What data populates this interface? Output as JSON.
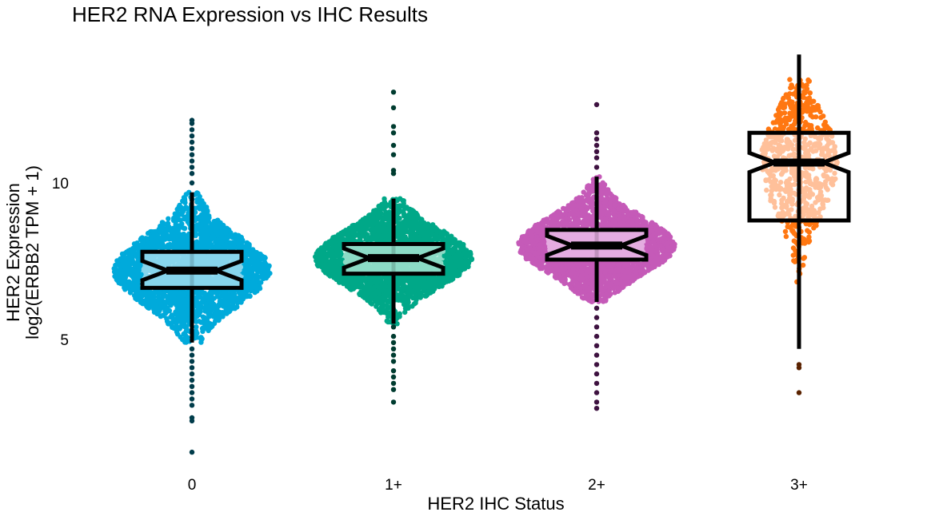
{
  "chart_data": {
    "type": "box",
    "title": "HER2 RNA Expression vs IHC Results",
    "xlabel": "HER2 IHC Status",
    "ylabel_line1": "HER2 Expression",
    "ylabel_line2": "log2(ERBB2 TPM + 1)",
    "ylim": [
      1,
      14
    ],
    "yticks": [
      5,
      10
    ],
    "ytick_labels": [
      "5",
      "10"
    ],
    "categories": [
      "0",
      "1+",
      "2+",
      "3+"
    ],
    "grid": false,
    "notched": true,
    "colors": {
      "points": [
        "#00aadb",
        "#00a888",
        "#c55ab8",
        "#ff7711"
      ],
      "box_fill": [
        "#87d5ec",
        "#8cdbc6",
        "#e4ace0",
        "#ffc09a"
      ],
      "outliers": [
        "#003c4a",
        "#003c30",
        "#3e1240",
        "#5a2200"
      ]
    },
    "series": [
      {
        "category": "0",
        "median": 7.2,
        "q1": 6.65,
        "q3": 7.8,
        "whisker_low": 4.9,
        "whisker_high": 9.7,
        "density_spread": 0.85,
        "outliers": [
          10.0,
          10.3,
          10.5,
          10.7,
          10.9,
          11.1,
          11.3,
          11.5,
          11.7,
          11.9,
          12.0,
          4.7,
          4.5,
          4.3,
          4.1,
          3.9,
          3.7,
          3.5,
          3.3,
          3.1,
          2.9,
          2.5,
          2.4,
          1.4
        ]
      },
      {
        "category": "1+",
        "median": 7.6,
        "q1": 7.1,
        "q3": 8.05,
        "whisker_low": 5.5,
        "whisker_high": 9.5,
        "density_spread": 0.9,
        "outliers": [
          10.3,
          10.4,
          10.9,
          11.2,
          11.6,
          11.8,
          12.4,
          12.9,
          5.4,
          5.1,
          4.9,
          4.7,
          4.5,
          4.3,
          4.0,
          3.8,
          3.6,
          3.4,
          3.0
        ]
      },
      {
        "category": "2+",
        "median": 8.0,
        "q1": 7.55,
        "q3": 8.5,
        "whisker_low": 6.2,
        "whisker_high": 10.2,
        "density_spread": 0.9,
        "outliers": [
          10.5,
          10.8,
          11.0,
          11.2,
          11.4,
          11.6,
          12.5,
          6.0,
          5.7,
          5.4,
          5.1,
          4.8,
          4.5,
          4.2,
          3.9,
          3.6,
          3.3,
          3.0,
          2.8
        ]
      },
      {
        "category": "3+",
        "median": 10.65,
        "q1": 8.8,
        "q3": 11.6,
        "whisker_low": 4.7,
        "whisker_high": 14.1,
        "density_spread": 0.35,
        "outliers": [
          4.2,
          4.1,
          3.3
        ]
      }
    ]
  }
}
